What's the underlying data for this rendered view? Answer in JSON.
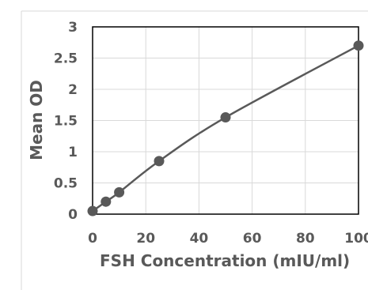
{
  "chart_data": {
    "type": "scatter",
    "title": "",
    "xlabel": "FSH Concentration (mIU/ml)",
    "ylabel": "Mean OD",
    "xlim": [
      0,
      100
    ],
    "ylim": [
      0,
      3
    ],
    "x_ticks": [
      "0",
      "20",
      "40",
      "60",
      "80",
      "100"
    ],
    "y_ticks": [
      "0",
      "0.5",
      "1",
      "1.5",
      "2",
      "2.5",
      "3"
    ],
    "grid": true,
    "legend": "none",
    "series": [
      {
        "x": [
          0,
          5,
          10,
          25,
          50,
          100
        ],
        "y": [
          0.05,
          0.2,
          0.35,
          0.85,
          1.55,
          2.7
        ],
        "trendline": true
      }
    ],
    "colors": {
      "marker": "#595959",
      "line": "#595959",
      "grid": "#d9d9d9",
      "plot_border": "#000000",
      "text": "#595959",
      "outer_border": "#d9d9d9"
    }
  }
}
